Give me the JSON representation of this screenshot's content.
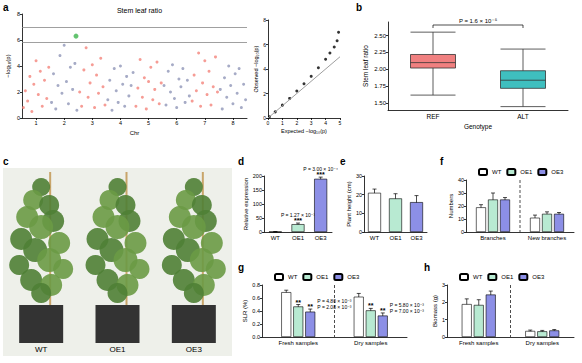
{
  "chart_data": [
    {
      "type": "scatter",
      "panel": "a",
      "title": "Stem leaf ratio",
      "x_label": "Chr",
      "y_label": "−log₁₀(p)",
      "xlim": [
        0,
        8
      ],
      "xticks": [
        {
          "value": 0.5,
          "label": "1"
        },
        {
          "value": 1.5,
          "label": "2"
        },
        {
          "value": 2.5,
          "label": "3"
        },
        {
          "value": 3.5,
          "label": "4"
        },
        {
          "value": 4.5,
          "label": "5"
        },
        {
          "value": 5.5,
          "label": "6"
        },
        {
          "value": 6.5,
          "label": "7"
        },
        {
          "value": 7.5,
          "label": "8"
        }
      ],
      "ylim": [
        0,
        8
      ],
      "yticks": [
        0,
        2,
        4,
        6,
        8
      ],
      "thresholds": [
        7.0,
        5.8
      ],
      "series": [
        {
          "color": "#f4837a",
          "x": [
            0.05,
            0.12,
            0.2,
            0.28,
            0.35,
            0.42,
            0.5,
            0.58,
            0.65,
            0.72,
            0.8,
            0.88,
            0.95,
            2.05,
            2.12,
            2.2,
            2.28,
            2.35,
            2.42,
            2.5,
            2.58,
            2.65,
            2.72,
            2.8,
            2.88,
            2.95,
            4.05,
            4.12,
            4.2,
            4.28,
            4.35,
            4.42,
            4.5,
            4.58,
            4.65,
            4.72,
            4.8,
            4.88,
            4.95,
            6.05,
            6.12,
            6.2,
            6.28,
            6.35,
            6.42,
            6.5,
            6.58,
            6.65,
            6.72,
            6.8,
            6.88,
            6.95
          ],
          "values": [
            0.8,
            2.1,
            1.3,
            3.2,
            0.5,
            2.6,
            4.4,
            1.8,
            3.6,
            0.9,
            2.9,
            1.5,
            3.9,
            2.0,
            0.9,
            3.7,
            5.4,
            1.6,
            2.7,
            4.1,
            0.8,
            3.3,
            1.9,
            4.6,
            2.4,
            1.0,
            0.9,
            2.3,
            4.5,
            1.6,
            3.1,
            0.7,
            2.8,
            3.9,
            1.4,
            2.2,
            4.3,
            1.1,
            2.7,
            1.3,
            3.3,
            2.1,
            5.0,
            0.9,
            2.7,
            4.4,
            1.8,
            3.6,
            1.0,
            2.4,
            4.7,
            2.0
          ]
        },
        {
          "color": "#9096b8",
          "x": [
            1.05,
            1.12,
            1.2,
            1.28,
            1.35,
            1.42,
            1.5,
            1.58,
            1.65,
            1.72,
            1.8,
            1.88,
            1.95,
            3.05,
            3.12,
            3.2,
            3.28,
            3.35,
            3.42,
            3.5,
            3.58,
            3.65,
            3.72,
            3.8,
            3.88,
            3.95,
            5.05,
            5.12,
            5.2,
            5.28,
            5.35,
            5.42,
            5.5,
            5.58,
            5.65,
            5.72,
            5.8,
            5.88,
            5.95,
            7.05,
            7.12,
            7.2,
            7.28,
            7.35,
            7.42,
            7.5,
            7.58,
            7.65,
            7.72,
            7.8,
            7.88,
            7.95
          ],
          "values": [
            1.2,
            3.4,
            0.7,
            2.5,
            4.8,
            1.9,
            5.6,
            2.8,
            1.1,
            3.9,
            2.2,
            4.2,
            0.6,
            1.4,
            2.9,
            0.6,
            3.8,
            2.1,
            1.2,
            4.0,
            2.6,
            0.9,
            3.2,
            1.7,
            2.5,
            3.5,
            2.5,
            1.0,
            3.6,
            2.0,
            4.1,
            1.5,
            0.8,
            3.0,
            2.4,
            3.8,
            1.2,
            2.9,
            1.7,
            2.2,
            0.7,
            3.1,
            1.6,
            4.0,
            2.5,
            1.1,
            3.4,
            1.9,
            3.8,
            0.8,
            2.6,
            1.4
          ]
        },
        {
          "color": "#3cb44b",
          "x": [
            1.92
          ],
          "values": [
            6.3
          ]
        }
      ]
    },
    {
      "type": "scatter",
      "x_label": "Expected −log₁₀(p)",
      "y_label": "Observed −log₁₀(p)",
      "xlim": [
        0,
        5
      ],
      "xticks": [
        0,
        1,
        2,
        3,
        4,
        5
      ],
      "ylim": [
        0,
        8
      ],
      "yticks": [
        0,
        2,
        4,
        6,
        8
      ],
      "series": [
        {
          "color": "#000000",
          "x": [
            0.1,
            0.5,
            1.0,
            1.5,
            2.0,
            2.5,
            3.0,
            3.5,
            4.0,
            4.3,
            4.6,
            4.8,
            4.9
          ],
          "values": [
            0.1,
            0.5,
            1.05,
            1.6,
            2.2,
            2.8,
            3.4,
            4.1,
            4.8,
            5.3,
            5.8,
            6.3,
            7.0
          ]
        },
        {
          "type": "line",
          "color": "#9e9e9e",
          "x": [
            0,
            5
          ],
          "values": [
            0,
            5
          ]
        }
      ]
    },
    {
      "type": "boxplot",
      "panel": "b",
      "x_label": "Genotype",
      "y_label": "Stem leaf ratio",
      "categories": [
        "REF",
        "ALT"
      ],
      "values": [
        [
          1.62,
          2.02,
          2.1,
          2.22,
          2.55
        ],
        [
          1.45,
          1.72,
          1.84,
          1.98,
          2.3
        ]
      ],
      "colors": [
        "#f08080",
        "#3fbfbf"
      ],
      "ylim": [
        1.4,
        2.7
      ],
      "yticks": [
        {
          "value": 1.5,
          "label": "1.50"
        },
        {
          "value": 1.75,
          "label": "1.75"
        },
        {
          "value": 2.0,
          "label": "2.00"
        },
        {
          "value": 2.25,
          "label": "2.25"
        },
        {
          "value": 2.5,
          "label": "2.50"
        }
      ],
      "annotations": [
        "P = 1.6 × 10⁻⁵"
      ]
    },
    {
      "type": "image",
      "panel": "c",
      "labels": [
        "WT",
        "OE1",
        "OE3"
      ]
    },
    {
      "type": "bar",
      "panel": "d",
      "y_label": "Relative expression",
      "categories": [
        "WT",
        "OE1",
        "OE3"
      ],
      "values": [
        1,
        28,
        190
      ],
      "errors": [
        0.3,
        4,
        6
      ],
      "colors": [
        "#ffffff",
        "#b8ead2",
        "#8c8fe6"
      ],
      "ylim": [
        0,
        200
      ],
      "yticks": [
        0,
        50,
        100,
        150,
        200
      ],
      "annotations": [
        {
          "category": "OE1",
          "sig": "***",
          "p": "P = 1.27 × 10⁻³"
        },
        {
          "category": "OE3",
          "sig": "***",
          "p": "P = 3.00 × 10⁻⁴"
        }
      ]
    },
    {
      "type": "bar",
      "panel": "e",
      "y_label": "Plant height (cm)",
      "categories": [
        "WT",
        "OE1",
        "OE3"
      ],
      "values": [
        21,
        18,
        16
      ],
      "errors": [
        2,
        2.5,
        3.5
      ],
      "colors": [
        "#ffffff",
        "#b8ead2",
        "#8c8fe6"
      ],
      "ylim": [
        0,
        30
      ],
      "yticks": [
        0,
        10,
        20,
        30
      ]
    },
    {
      "type": "bar",
      "panel": "f",
      "y_label": "Numbers",
      "legend": "top",
      "categories": [
        "Branches",
        "New branches"
      ],
      "series": [
        {
          "name": "WT",
          "color": "#ffffff",
          "values": [
            19,
            11
          ],
          "errors": [
            2,
            2
          ]
        },
        {
          "name": "OE1",
          "color": "#b8ead2",
          "values": [
            25,
            14
          ],
          "errors": [
            5,
            1.5
          ]
        },
        {
          "name": "OE3",
          "color": "#8c8fe6",
          "values": [
            25,
            14
          ],
          "errors": [
            1.5,
            1
          ]
        }
      ],
      "ylim": [
        0,
        40
      ],
      "yticks": [
        0,
        10,
        20,
        30,
        40
      ]
    },
    {
      "type": "bar",
      "panel": "g",
      "y_label": "SLR (%)",
      "legend": "top",
      "categories": [
        "Fresh samples",
        "Dry samples"
      ],
      "series": [
        {
          "name": "WT",
          "color": "#ffffff",
          "values": [
            0.69,
            0.62
          ],
          "errors": [
            0.03,
            0.05
          ]
        },
        {
          "name": "OE1",
          "color": "#b8ead2",
          "values": [
            0.47,
            0.41
          ],
          "errors": [
            0.03,
            0.03
          ]
        },
        {
          "name": "OE3",
          "color": "#8c8fe6",
          "values": [
            0.39,
            0.33
          ],
          "errors": [
            0.04,
            0.04
          ]
        }
      ],
      "ylim": [
        0,
        0.8
      ],
      "yticks": [
        {
          "value": 0,
          "label": "0.0"
        },
        0.2,
        0.4,
        0.6,
        0.8
      ],
      "annotations": [
        {
          "series": "OE1",
          "category": "Fresh samples",
          "sig": "**",
          "p": "P = 4.80 × 10⁻³"
        },
        {
          "series": "OE3",
          "category": "Fresh samples",
          "sig": "**",
          "p": "P = 2.08 × 10⁻³"
        },
        {
          "series": "OE1",
          "category": "Dry samples",
          "sig": "**",
          "p": "P = 5.80 × 10⁻³"
        },
        {
          "series": "OE3",
          "category": "Dry samples",
          "sig": "**",
          "p": "P = 7.00 × 10⁻³"
        }
      ]
    },
    {
      "type": "bar",
      "panel": "h",
      "y_label": "Biomass (g)",
      "legend": "top",
      "categories": [
        "Fresh samples",
        "Dry samples"
      ],
      "series": [
        {
          "name": "WT",
          "color": "#ffffff",
          "values": [
            1.9,
            0.35
          ],
          "errors": [
            0.3,
            0.05
          ]
        },
        {
          "name": "OE1",
          "color": "#b8ead2",
          "values": [
            1.85,
            0.33
          ],
          "errors": [
            0.3,
            0.05
          ]
        },
        {
          "name": "OE3",
          "color": "#8c8fe6",
          "values": [
            2.45,
            0.38
          ],
          "errors": [
            0.2,
            0.05
          ]
        }
      ],
      "ylim": [
        0,
        3
      ],
      "yticks": [
        0,
        1,
        2,
        3
      ]
    }
  ]
}
